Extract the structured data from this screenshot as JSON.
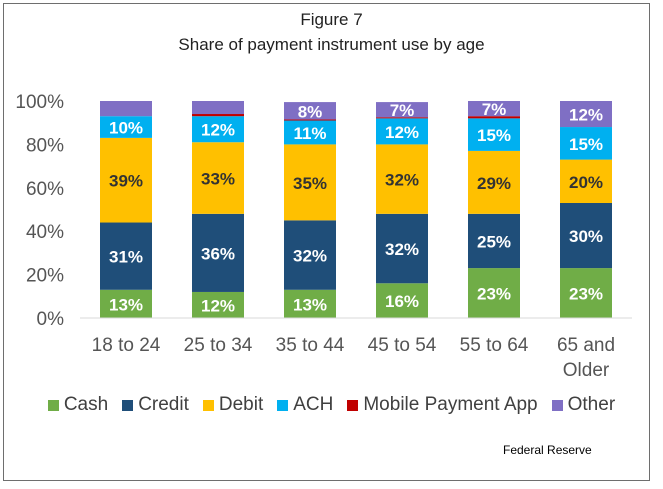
{
  "title_line1": "Figure 7",
  "title_line2": "Share of payment instrument use by age",
  "source": "Federal Reserve",
  "chart_data": {
    "type": "bar",
    "stacked": true,
    "categories": [
      [
        "18 to 24"
      ],
      [
        "25 to 34"
      ],
      [
        "35 to 44"
      ],
      [
        "45 to 54"
      ],
      [
        "55 to 64"
      ],
      [
        "65 and",
        "Older"
      ]
    ],
    "ylim": [
      0,
      100
    ],
    "yticks": [
      "0%",
      "20%",
      "40%",
      "60%",
      "80%",
      "100%"
    ],
    "legend_position": "bottom",
    "series": [
      {
        "name": "Cash",
        "color": "#70ad47",
        "values": [
          13,
          12,
          13,
          16,
          23,
          23
        ],
        "labels": [
          "13%",
          "12%",
          "13%",
          "16%",
          "23%",
          "23%"
        ]
      },
      {
        "name": "Credit",
        "color": "#1f4e79",
        "values": [
          31,
          36,
          32,
          32,
          25,
          30
        ],
        "labels": [
          "31%",
          "36%",
          "32%",
          "32%",
          "25%",
          "30%"
        ]
      },
      {
        "name": "Debit",
        "color": "#ffc000",
        "values": [
          39,
          33,
          35,
          32,
          29,
          20
        ],
        "labels": [
          "39%",
          "33%",
          "35%",
          "32%",
          "29%",
          "20%"
        ],
        "label_color": "#333333"
      },
      {
        "name": "ACH",
        "color": "#00b0f0",
        "values": [
          10,
          12,
          11,
          12,
          15,
          15
        ],
        "labels": [
          "10%",
          "12%",
          "11%",
          "12%",
          "15%",
          "15%"
        ]
      },
      {
        "name": "Mobile Payment App",
        "color": "#c00000",
        "values": [
          0,
          1,
          0.5,
          0.5,
          1,
          0
        ],
        "labels": [
          "",
          "",
          "",
          "",
          "",
          ""
        ]
      },
      {
        "name": "Other",
        "color": "#7f6fc4",
        "values": [
          7,
          6,
          8,
          7,
          7,
          12
        ],
        "labels": [
          "",
          "",
          "8%",
          "7%",
          "7%",
          "12%"
        ]
      }
    ]
  }
}
